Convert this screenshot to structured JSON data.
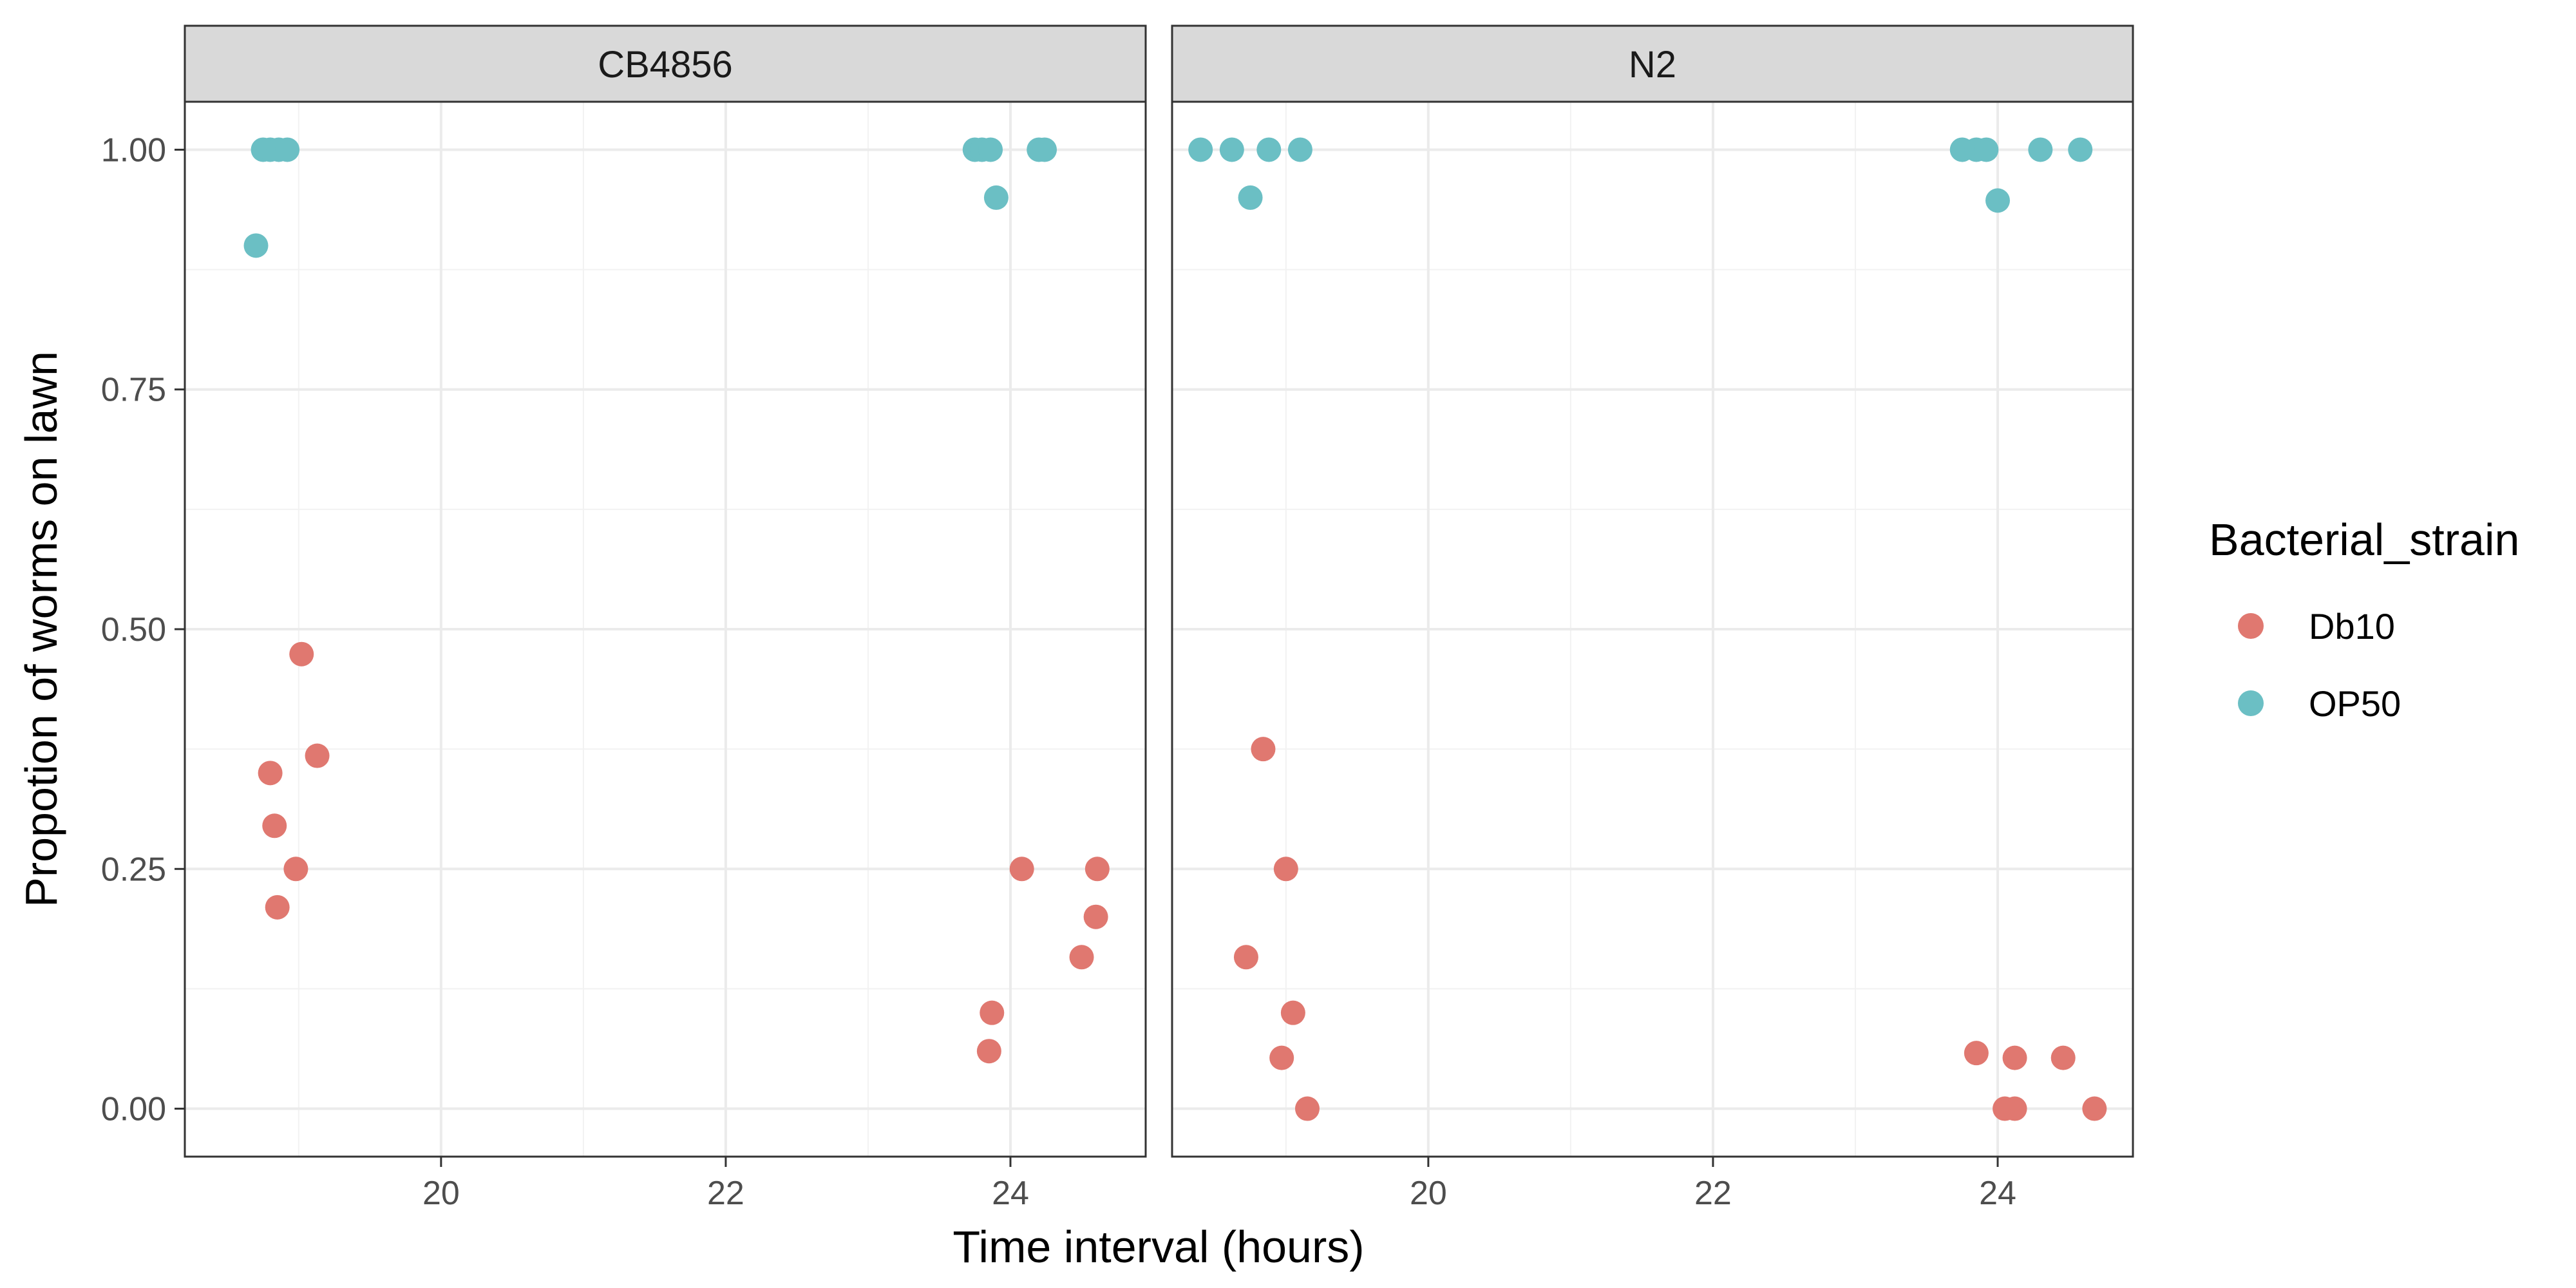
{
  "chart_data": {
    "type": "scatter",
    "xlabel": "Time interval (hours)",
    "ylabel": "Propotion of worms on lawn",
    "xlim": [
      18.2,
      24.95
    ],
    "ylim": [
      -0.05,
      1.05
    ],
    "x_ticks": [
      20,
      22,
      24
    ],
    "y_ticks": [
      0.0,
      0.25,
      0.5,
      0.75,
      1.0
    ],
    "y_tick_labels": [
      "0.00",
      "0.25",
      "0.50",
      "0.75",
      "1.00"
    ],
    "grid": true,
    "legend": {
      "title": "Bacterial_strain",
      "placement": "right",
      "entries": [
        {
          "name": "Db10",
          "color": "#E07870"
        },
        {
          "name": "OP50",
          "color": "#6BBFC4"
        }
      ]
    },
    "panels": [
      {
        "strip": "CB4856",
        "series": [
          {
            "name": "Db10",
            "points": [
              {
                "x": 18.8,
                "y": 0.35
              },
              {
                "x": 18.83,
                "y": 0.295
              },
              {
                "x": 18.85,
                "y": 0.21
              },
              {
                "x": 18.98,
                "y": 0.25
              },
              {
                "x": 19.02,
                "y": 0.474
              },
              {
                "x": 19.13,
                "y": 0.368
              },
              {
                "x": 23.85,
                "y": 0.06
              },
              {
                "x": 23.87,
                "y": 0.1
              },
              {
                "x": 24.08,
                "y": 0.25
              },
              {
                "x": 24.5,
                "y": 0.158
              },
              {
                "x": 24.6,
                "y": 0.2
              },
              {
                "x": 24.61,
                "y": 0.25
              }
            ]
          },
          {
            "name": "OP50",
            "points": [
              {
                "x": 18.7,
                "y": 0.9
              },
              {
                "x": 18.75,
                "y": 1.0
              },
              {
                "x": 18.8,
                "y": 1.0
              },
              {
                "x": 18.86,
                "y": 1.0
              },
              {
                "x": 18.92,
                "y": 1.0
              },
              {
                "x": 23.75,
                "y": 1.0
              },
              {
                "x": 23.8,
                "y": 1.0
              },
              {
                "x": 23.86,
                "y": 1.0
              },
              {
                "x": 23.9,
                "y": 0.95
              },
              {
                "x": 24.2,
                "y": 1.0
              },
              {
                "x": 24.24,
                "y": 1.0
              }
            ]
          }
        ]
      },
      {
        "strip": "N2",
        "series": [
          {
            "name": "Db10",
            "points": [
              {
                "x": 18.72,
                "y": 0.158
              },
              {
                "x": 18.84,
                "y": 0.375
              },
              {
                "x": 18.97,
                "y": 0.053
              },
              {
                "x": 19.0,
                "y": 0.25
              },
              {
                "x": 19.05,
                "y": 0.1
              },
              {
                "x": 19.15,
                "y": 0.0
              },
              {
                "x": 23.85,
                "y": 0.058
              },
              {
                "x": 24.05,
                "y": 0.0
              },
              {
                "x": 24.12,
                "y": 0.0
              },
              {
                "x": 24.12,
                "y": 0.053
              },
              {
                "x": 24.46,
                "y": 0.053
              },
              {
                "x": 24.68,
                "y": 0.0
              }
            ]
          },
          {
            "name": "OP50",
            "points": [
              {
                "x": 18.4,
                "y": 1.0
              },
              {
                "x": 18.62,
                "y": 1.0
              },
              {
                "x": 18.75,
                "y": 0.95
              },
              {
                "x": 18.88,
                "y": 1.0
              },
              {
                "x": 19.1,
                "y": 1.0
              },
              {
                "x": 23.75,
                "y": 1.0
              },
              {
                "x": 23.85,
                "y": 1.0
              },
              {
                "x": 23.92,
                "y": 1.0
              },
              {
                "x": 24.0,
                "y": 0.947
              },
              {
                "x": 24.3,
                "y": 1.0
              },
              {
                "x": 24.58,
                "y": 1.0
              }
            ]
          }
        ]
      }
    ]
  }
}
